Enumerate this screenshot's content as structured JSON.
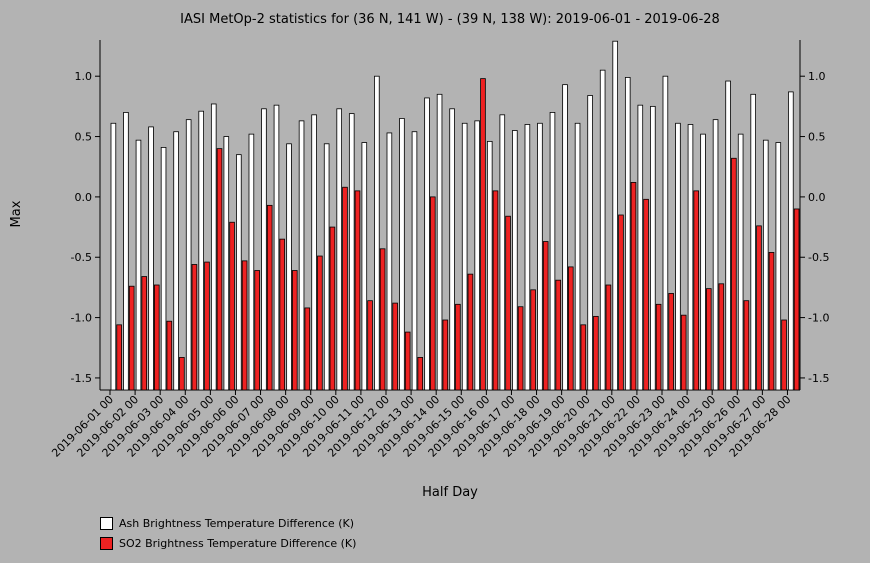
{
  "chart_data": {
    "type": "bar",
    "title": "IASI MetOp-2 statistics for (36 N, 141 W) - (39 N, 138 W): 2019-06-01 - 2019-06-28",
    "xlabel": "Half Day",
    "ylabel": "Max",
    "ylim": [
      -1.6,
      1.3
    ],
    "yticks": [
      1.0,
      0.5,
      0.0,
      -0.5,
      -1.0,
      -1.5
    ],
    "ytick_labels": [
      "1.0",
      "0.5",
      "0.0",
      "-0.5",
      "-1.0",
      "-1.5"
    ],
    "xtick_labels": [
      "2019-06-01 00",
      "2019-06-02 00",
      "2019-06-03 00",
      "2019-06-04 00",
      "2019-06-05 00",
      "2019-06-06 00",
      "2019-06-07 00",
      "2019-06-08 00",
      "2019-06-09 00",
      "2019-06-10 00",
      "2019-06-11 00",
      "2019-06-12 00",
      "2019-06-13 00",
      "2019-06-14 00",
      "2019-06-15 00",
      "2019-06-16 00",
      "2019-06-17 00",
      "2019-06-18 00",
      "2019-06-19 00",
      "2019-06-20 00",
      "2019-06-21 00",
      "2019-06-22 00",
      "2019-06-23 00",
      "2019-06-24 00",
      "2019-06-25 00",
      "2019-06-26 00",
      "2019-06-27 00",
      "2019-06-28 00"
    ],
    "legend_position": "bottom-left",
    "series": [
      {
        "name": "Ash Brightness Temperature Difference (K)",
        "color": "#ffffff",
        "values": [
          0.61,
          0.7,
          0.47,
          0.58,
          0.41,
          0.54,
          0.64,
          0.71,
          0.77,
          0.5,
          0.35,
          0.52,
          0.73,
          0.76,
          0.44,
          0.63,
          0.68,
          0.44,
          0.73,
          0.69,
          0.45,
          1.0,
          0.53,
          0.65,
          0.54,
          0.82,
          0.85,
          0.73,
          0.61,
          0.63,
          0.46,
          0.68,
          0.55,
          0.6,
          0.61,
          0.7,
          0.93,
          0.61,
          0.84,
          1.05,
          1.29,
          0.99,
          0.76,
          0.75,
          1.0,
          0.61,
          0.6,
          0.52,
          0.64,
          0.96,
          0.52,
          0.85,
          0.47,
          0.45,
          0.87
        ]
      },
      {
        "name": "SO2 Brightness Temperature Difference (K)",
        "color": "#ee2222",
        "values": [
          -1.06,
          -0.74,
          -0.66,
          -0.73,
          -1.03,
          -1.33,
          -0.56,
          -0.54,
          0.4,
          -0.21,
          -0.53,
          -0.61,
          -0.07,
          -0.35,
          -0.61,
          -0.92,
          -0.49,
          -0.25,
          0.08,
          0.05,
          -0.86,
          -0.43,
          -0.88,
          -1.12,
          -1.33,
          0.0,
          -1.02,
          -0.89,
          -0.64,
          0.98,
          0.05,
          -0.16,
          -0.91,
          -0.77,
          -0.37,
          -0.69,
          -0.58,
          -1.06,
          -0.99,
          -0.73,
          -0.15,
          0.12,
          -0.02,
          -0.89,
          -0.8,
          -0.98,
          0.05,
          -0.76,
          -0.72,
          0.32,
          -0.86,
          -0.24,
          -0.46,
          -1.02,
          -0.1
        ]
      }
    ]
  }
}
